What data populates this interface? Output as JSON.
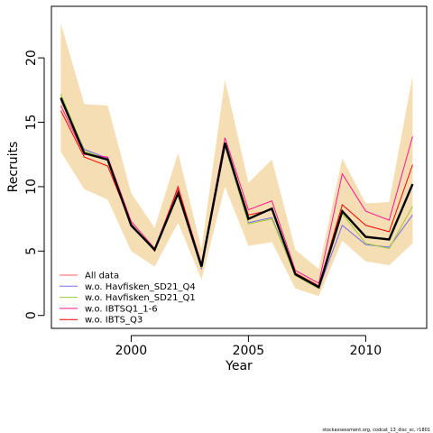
{
  "chart_data": {
    "type": "line",
    "xlabel": "Year",
    "ylabel": "Recruits",
    "xlim": [
      1996.6,
      2012.6
    ],
    "ylim": [
      -1.0,
      24.0
    ],
    "xticks": [
      2000,
      2005,
      2010
    ],
    "yticks": [
      0,
      5,
      10,
      15,
      20
    ],
    "legend_position": "bottom-left",
    "grid": false,
    "x": [
      1997,
      1998,
      1999,
      2000,
      2001,
      2002,
      2003,
      2004,
      2005,
      2006,
      2007,
      2008,
      2009,
      2010,
      2011,
      2012
    ],
    "band": {
      "color": "#f5deb3",
      "upper": [
        22.7,
        16.4,
        16.3,
        9.5,
        6.8,
        12.6,
        5.2,
        18.3,
        10.3,
        12.1,
        5.1,
        3.6,
        12.2,
        8.7,
        8.8,
        18.6
      ],
      "lower": [
        12.7,
        9.8,
        9.0,
        5.0,
        3.8,
        7.2,
        2.8,
        10.0,
        5.4,
        5.7,
        2.1,
        1.5,
        5.8,
        4.2,
        3.9,
        5.6
      ]
    },
    "main": {
      "color": "#000000",
      "values": [
        16.9,
        12.6,
        12.1,
        7.0,
        5.1,
        9.5,
        3.8,
        13.4,
        7.5,
        8.3,
        3.2,
        2.2,
        8.1,
        6.1,
        5.9,
        10.2
      ]
    },
    "series": [
      {
        "name": "All data",
        "color": "#ff5f5f",
        "values": [
          16.9,
          12.6,
          12.1,
          7.0,
          5.1,
          9.5,
          3.8,
          13.4,
          7.5,
          8.3,
          3.2,
          2.2,
          8.1,
          6.1,
          5.9,
          10.2
        ]
      },
      {
        "name": "w.o. Havfisken_SD21_Q4",
        "color": "#7b68ee",
        "values": [
          16.7,
          12.9,
          12.2,
          6.9,
          5.1,
          9.4,
          3.6,
          13.1,
          7.2,
          7.6,
          3.1,
          2.1,
          7.0,
          5.5,
          5.3,
          7.8
        ]
      },
      {
        "name": "w.o. Havfisken_SD21_Q1",
        "color": "#9acd32",
        "values": [
          17.2,
          12.8,
          12.1,
          7.0,
          5.1,
          9.4,
          3.7,
          13.2,
          7.1,
          7.5,
          3.1,
          2.1,
          7.9,
          5.6,
          5.2,
          8.5
        ]
      },
      {
        "name": "w.o. IBTSQ1_1-6",
        "color": "#ff1493",
        "values": [
          16.3,
          12.5,
          12.3,
          7.3,
          5.2,
          9.9,
          4.0,
          13.8,
          8.2,
          8.9,
          3.5,
          2.5,
          11.0,
          8.1,
          7.4,
          13.9
        ]
      },
      {
        "name": "w.o. IBTS_Q3",
        "color": "#ff0000",
        "values": [
          15.9,
          12.3,
          11.6,
          7.1,
          5.0,
          10.0,
          3.8,
          13.3,
          7.8,
          8.2,
          3.3,
          2.3,
          8.6,
          7.0,
          6.5,
          11.7
        ]
      }
    ]
  },
  "footer": "stockassessment.org, codcat_13_disc_sc, r1801"
}
